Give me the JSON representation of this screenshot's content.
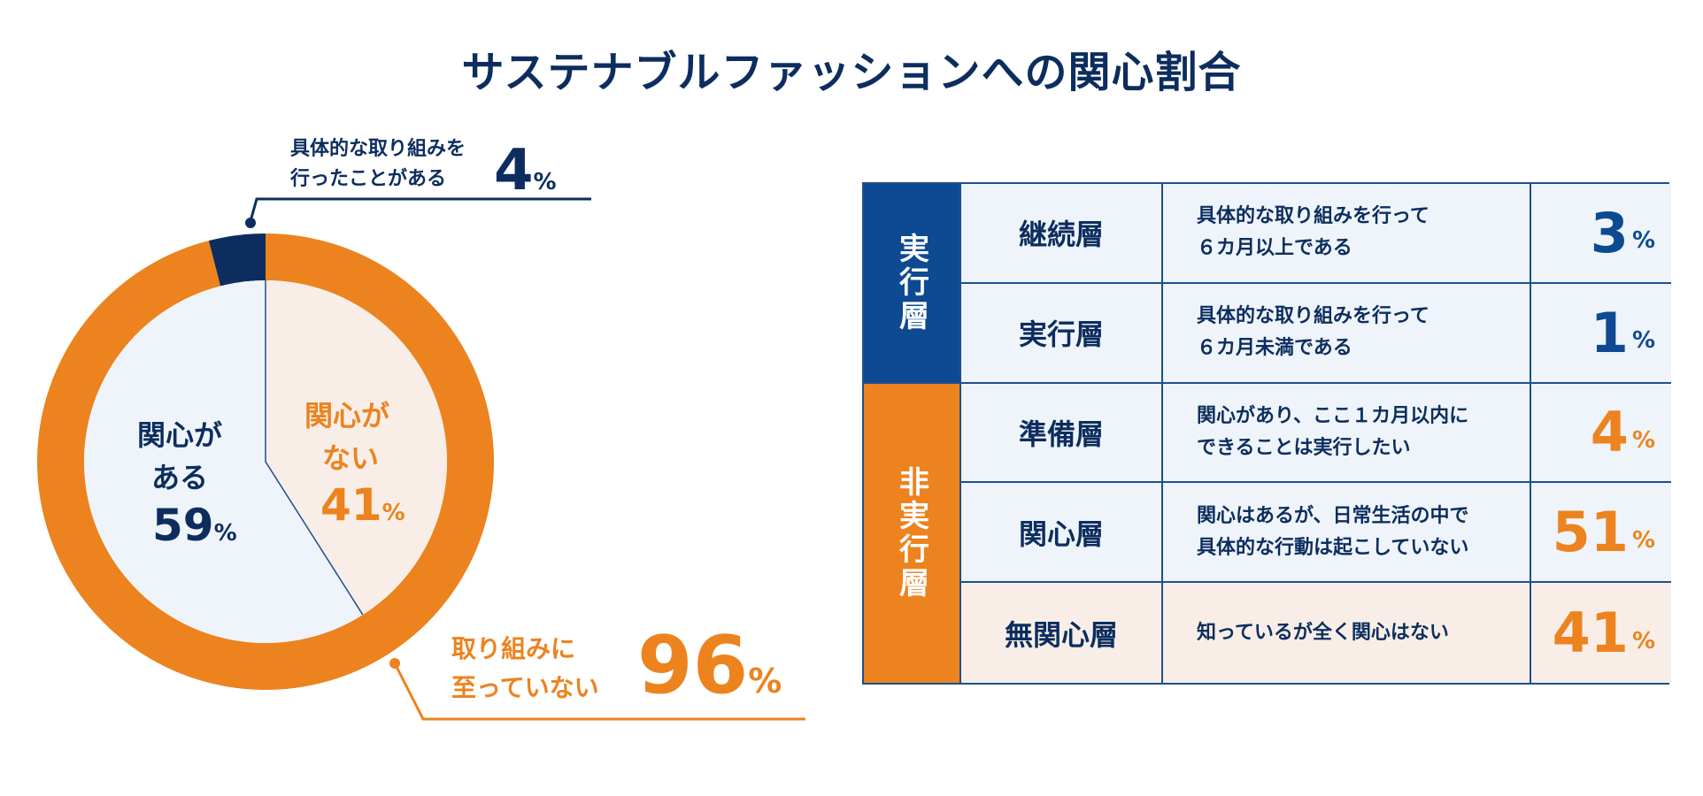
{
  "title": "サステナブルファッションへの関心割合",
  "chart_data": [
    {
      "type": "pie",
      "title": "",
      "outer_ring": [
        {
          "label": "具体的な取り組みを行ったことがある",
          "value": 4,
          "color": "#0c2d5e"
        },
        {
          "label": "取り組みに至っていない",
          "value": 96,
          "color": "#ec831f"
        }
      ],
      "inner_pie": [
        {
          "label": "関心がある",
          "value": 59,
          "color": "#eef4f9"
        },
        {
          "label": "関心がない",
          "value": 41,
          "color": "#f8eee7"
        }
      ],
      "labels": {
        "did_line1": "具体的な取り組みを",
        "did_line2": "行ったことがある",
        "did_value": "4",
        "not_line1": "取り組みに",
        "not_line2": "至っていない",
        "not_value": "96",
        "interest_line1": "関心が",
        "interest_line2": "ある",
        "interest_value": "59",
        "nointerest_line1": "関心が",
        "nointerest_line2": "ない",
        "nointerest_value": "41",
        "unit": "%"
      }
    },
    {
      "type": "table",
      "groups": [
        {
          "label": "実行層",
          "color": "#0d4a92"
        },
        {
          "label": "非実行層",
          "color": "#ec831f"
        }
      ],
      "rows": [
        {
          "name": "継続層",
          "desc": "具体的な取り組みを行って\n６カ月以上である",
          "value": "3",
          "color": "#0d4a92"
        },
        {
          "name": "実行層",
          "desc": "具体的な取り組みを行って\n６カ月未満である",
          "value": "1",
          "color": "#0d4a92"
        },
        {
          "name": "準備層",
          "desc": "関心があり、ここ１カ月以内に\nできることは実行したい",
          "value": "4",
          "color": "#ec831f"
        },
        {
          "name": "関心層",
          "desc": "関心はあるが、日常生活の中で\n具体的な行動は起こしていない",
          "value": "51",
          "color": "#ec831f"
        },
        {
          "name": "無関心層",
          "desc": "知っているが全く関心はない",
          "value": "41",
          "color": "#ec831f"
        }
      ],
      "unit": "%"
    }
  ]
}
